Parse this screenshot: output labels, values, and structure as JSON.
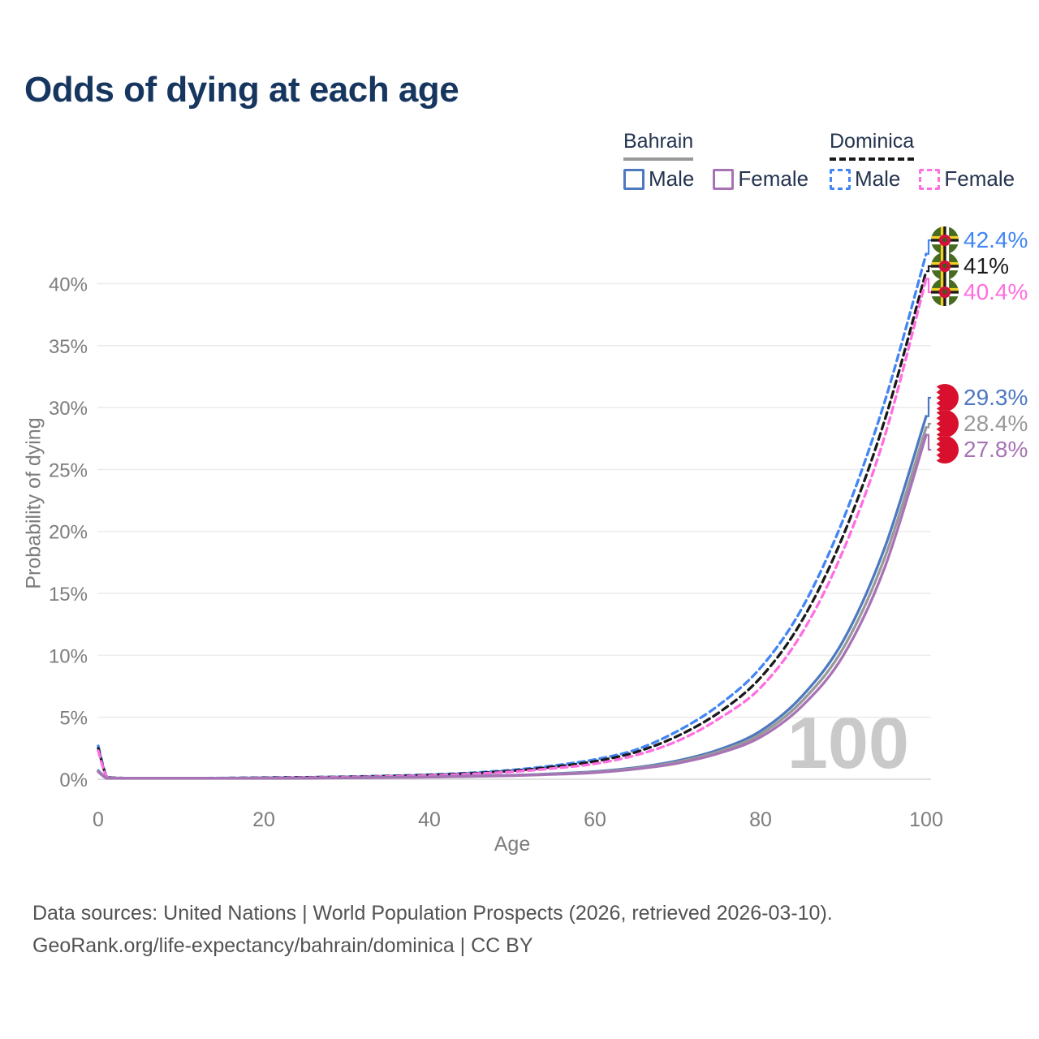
{
  "title": "Odds of dying at each age",
  "legend": {
    "groups": [
      {
        "country": "Bahrain",
        "line_style": "solid",
        "male_label": "Male",
        "female_label": "Female"
      },
      {
        "country": "Dominica",
        "line_style": "dashed",
        "male_label": "Male",
        "female_label": "Female"
      }
    ]
  },
  "watermark": "100",
  "footer": {
    "line1": "Data sources: United Nations | World Population Prospects (2026, retrieved 2026-03-10).",
    "line2": "GeoRank.org/life-expectancy/bahrain/dominica | CC BY"
  },
  "chart_data": {
    "type": "line",
    "title": "Odds of dying at each age",
    "xlabel": "Age",
    "ylabel": "Probability of dying",
    "xlim": [
      0,
      100
    ],
    "ylim_percent": [
      0,
      44
    ],
    "x_ticks": [
      0,
      20,
      40,
      60,
      80,
      100
    ],
    "x_tick_labels": [
      "0",
      "20",
      "40",
      "60",
      "80",
      "100"
    ],
    "y_ticks_percent": [
      0,
      5,
      10,
      15,
      20,
      25,
      30,
      35,
      40
    ],
    "y_tick_labels": [
      "0%",
      "5%",
      "10%",
      "15%",
      "20%",
      "25%",
      "30%",
      "35%",
      "40%"
    ],
    "grid": "horizontal",
    "legend_position": "top-right",
    "x": [
      0,
      1,
      2,
      5,
      10,
      15,
      20,
      25,
      30,
      35,
      40,
      45,
      50,
      55,
      60,
      65,
      70,
      75,
      80,
      85,
      90,
      95,
      100
    ],
    "series": [
      {
        "name": "Dominica Male",
        "country": "Dominica",
        "sex": "male",
        "line_style": "dashed",
        "color": "#4285f4",
        "end_label": "42.4%",
        "values_percent": [
          2.7,
          0.25,
          0.12,
          0.08,
          0.08,
          0.1,
          0.13,
          0.16,
          0.21,
          0.27,
          0.37,
          0.52,
          0.75,
          1.1,
          1.6,
          2.4,
          3.9,
          6.0,
          9.0,
          13.8,
          21.0,
          30.5,
          42.4
        ]
      },
      {
        "name": "Dominica Both sexes",
        "country": "Dominica",
        "sex": "all",
        "line_style": "dashed",
        "color": "#1a1a1a",
        "end_label": "41%",
        "values_percent": [
          2.5,
          0.22,
          0.11,
          0.07,
          0.07,
          0.09,
          0.12,
          0.15,
          0.19,
          0.25,
          0.34,
          0.47,
          0.68,
          1.0,
          1.45,
          2.2,
          3.5,
          5.4,
          8.2,
          12.8,
          19.7,
          29.0,
          41.0
        ]
      },
      {
        "name": "Dominica Female",
        "country": "Dominica",
        "sex": "female",
        "line_style": "dashed",
        "color": "#ff6ee0",
        "end_label": "40.4%",
        "values_percent": [
          2.3,
          0.2,
          0.1,
          0.06,
          0.06,
          0.08,
          0.1,
          0.13,
          0.17,
          0.22,
          0.3,
          0.42,
          0.6,
          0.88,
          1.25,
          1.95,
          3.1,
          4.9,
          7.4,
          11.8,
          18.5,
          27.7,
          40.4
        ]
      },
      {
        "name": "Bahrain Male",
        "country": "Bahrain",
        "sex": "male",
        "line_style": "solid",
        "color": "#4d79c0",
        "end_label": "29.3%",
        "values_percent": [
          0.7,
          0.1,
          0.06,
          0.04,
          0.04,
          0.06,
          0.08,
          0.1,
          0.12,
          0.15,
          0.19,
          0.25,
          0.33,
          0.45,
          0.62,
          0.95,
          1.5,
          2.4,
          3.9,
          6.7,
          11.2,
          18.7,
          29.3
        ]
      },
      {
        "name": "Bahrain Both sexes",
        "country": "Bahrain",
        "sex": "all",
        "line_style": "solid",
        "color": "#999999",
        "end_label": "28.4%",
        "values_percent": [
          0.65,
          0.09,
          0.055,
          0.04,
          0.04,
          0.055,
          0.075,
          0.095,
          0.115,
          0.14,
          0.18,
          0.23,
          0.31,
          0.42,
          0.58,
          0.89,
          1.4,
          2.25,
          3.65,
          6.3,
          10.6,
          17.9,
          28.4
        ]
      },
      {
        "name": "Bahrain Female",
        "country": "Bahrain",
        "sex": "female",
        "line_style": "solid",
        "color": "#a873b5",
        "end_label": "27.8%",
        "values_percent": [
          0.6,
          0.08,
          0.05,
          0.035,
          0.035,
          0.05,
          0.07,
          0.09,
          0.11,
          0.13,
          0.17,
          0.22,
          0.29,
          0.39,
          0.54,
          0.83,
          1.3,
          2.1,
          3.4,
          5.9,
          10.0,
          17.1,
          27.8
        ]
      }
    ],
    "colors": {
      "bahrain_male": "#4d79c0",
      "bahrain_both": "#999999",
      "bahrain_female": "#a873b5",
      "dominica_male": "#4285f4",
      "dominica_both": "#1a1a1a",
      "dominica_female": "#ff6ee0",
      "grid": "#ececec",
      "axis_text": "#7d7d7d",
      "title_text": "#17365f",
      "watermark": "#c9c9c9"
    }
  }
}
